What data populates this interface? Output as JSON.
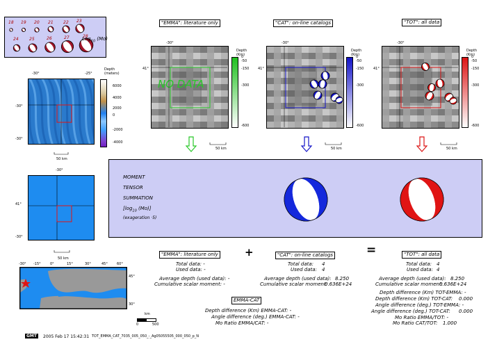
{
  "legend_box": {
    "mags": [
      "18",
      "19",
      "20",
      "21",
      "22",
      "23",
      "24",
      "25",
      "26",
      "27",
      "28"
    ],
    "unit_label": "Log",
    "unit_sub": "10",
    "unit_tail": " (Mo)"
  },
  "panels": [
    {
      "title": "\"EMMA\": literature only",
      "nodata": "NO DATA",
      "scale": "50 km",
      "color": "#32c832"
    },
    {
      "title": "\"CAT\": on-line catalogs",
      "scale": "50 km",
      "color": "#1414c8"
    },
    {
      "title": "\"TOT\": all data",
      "scale": "50 km",
      "color": "#dc1414"
    }
  ],
  "depth_scale": {
    "label_top": "Depth",
    "label_unit": "(Km)",
    "ticks": [
      "0",
      "-50",
      "-150",
      "-300",
      "-600"
    ]
  },
  "topo": {
    "label_top": "Depth",
    "label_unit": "(meters)",
    "ticks": [
      "6000",
      "4000",
      "2000",
      "0",
      "-2000",
      "-4000"
    ],
    "scale": "50 km"
  },
  "ticks": {
    "lon_a": "-30°",
    "lon_b": "-25°",
    "lat_a": "41°",
    "lat_b": "-30°",
    "lon_single": "-30°"
  },
  "map_scale": "50 km",
  "world_ticks": {
    "lon": [
      "-30°",
      "-15°",
      "0°",
      "15°",
      "30°",
      "45°",
      "60°"
    ],
    "lat": [
      "45°",
      "30°"
    ],
    "scale_label": "km",
    "scale_values": [
      "0",
      "500"
    ]
  },
  "summation": {
    "lines": [
      "MOMENT",
      "TENSOR",
      "SUMMATION",
      "[log",
      "10",
      " (Mo)]",
      "(exageration ·5)"
    ]
  },
  "ops": {
    "plus": "+",
    "equals": "="
  },
  "stats": {
    "emma": {
      "title": "\"EMMA\": literature only",
      "total": "Total data: -",
      "used": "Used data: -",
      "avg": "Average depth (used data): -",
      "cum": "Cumulative scalar moment: -"
    },
    "cat": {
      "title": "\"CAT\": on-line catalogs",
      "total": "Total data:",
      "total_v": "4",
      "used": "Used data:",
      "used_v": "4",
      "avg": "Average depth (used data):",
      "avg_v": "8.250",
      "cum": "Cumulative scalar moment:",
      "cum_v": "0.636E+24"
    },
    "tot": {
      "title": "\"TOT\": all data",
      "total": "Total data:",
      "total_v": "4",
      "used": "Used data:",
      "used_v": "4",
      "avg": "Average depth (used data):",
      "avg_v": "8.250",
      "cum": "Cumulative scalar moment:",
      "cum_v": "0.636E+24",
      "d1": "Depth difference (Km) TOT-EMMA: -",
      "d2": "Depth difference (Km) TOT-CAT:",
      "d2v": "0.000",
      "a1": "Angle difference (deg.) TOT-EMMA: -",
      "a2": "Angle difference (deg.) TOT-CAT:",
      "a2v": "0.000",
      "m1": "Mo Ratio EMMA/TOT: -",
      "m2": "Mo Ratio CAT/TOT:",
      "m2v": "1.000"
    }
  },
  "emmacat": {
    "title": "EMMA-CAT",
    "l1": "Depth difference (Km) EMMA-CAT: -",
    "l2": "Angle difference (deg.) EMMA-CAT: -",
    "l3": "Mo Ratio EMMA/CAT: -"
  },
  "footer": {
    "logo": "GMT",
    "date": "2005 Feb 17 15:42:31",
    "file": "TOT_EMMA_CAT_7035_005_050_-_Ag05055505_000_050_p_N"
  },
  "colors": {
    "panel_bg": "#cdcdf5",
    "red": "#e01414",
    "blue": "#1428dc",
    "green": "#28c828",
    "ocean": "#1e8cf0",
    "map_bg": "#999999"
  }
}
